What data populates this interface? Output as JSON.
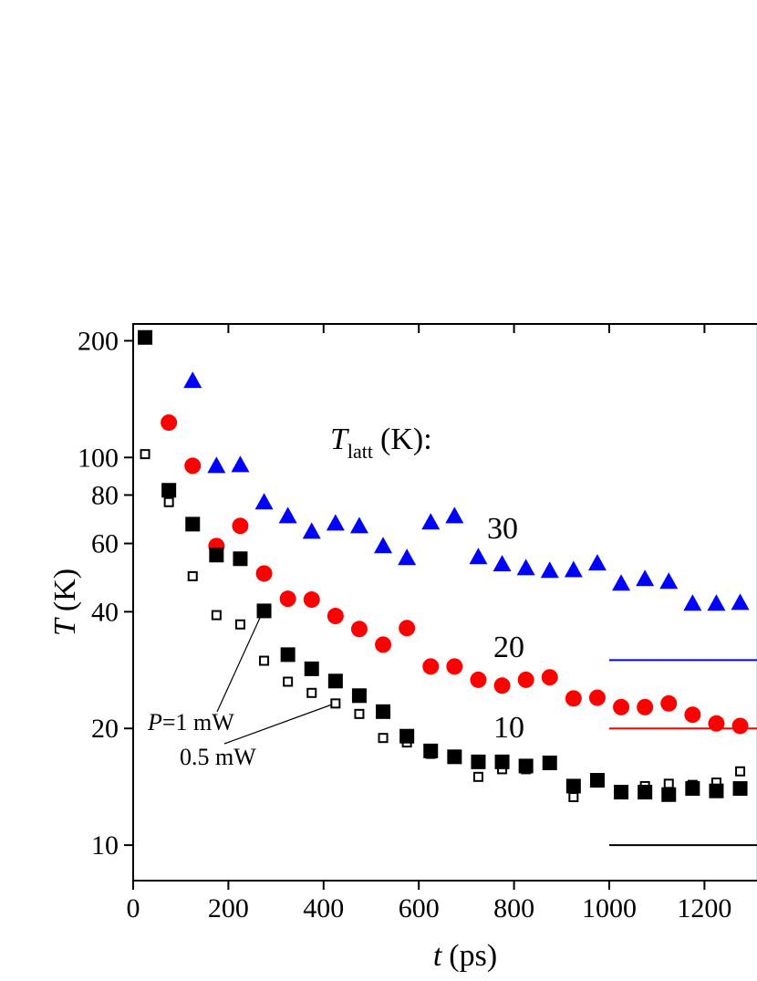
{
  "chart_data": {
    "type": "scatter",
    "x_label": {
      "symbol": "t",
      "unit": "(ps)"
    },
    "y_label": {
      "symbol": "T",
      "unit": "(K)"
    },
    "legend_title": {
      "symbol": "T",
      "subscript": "latt",
      "unit": "(K):"
    },
    "curve_labels": [
      "30",
      "20",
      "10"
    ],
    "power_labels": [
      {
        "symbol": "P",
        "text": "=1 mW"
      },
      {
        "text": "0.5 mW"
      }
    ],
    "xlim": [
      0,
      1312
    ],
    "xticks": [
      0,
      200,
      400,
      600,
      800,
      1000,
      1200
    ],
    "ylim": [
      8.1,
      221
    ],
    "ylog": true,
    "yticks": [
      10,
      20,
      40,
      60,
      80,
      100,
      200
    ],
    "series": [
      {
        "marker": "triangle",
        "color": "#0000ff",
        "x": [
          125,
          175,
          225,
          275,
          325,
          375,
          425,
          475,
          525,
          575,
          625,
          675,
          725,
          775,
          825,
          875,
          925,
          975,
          1025,
          1075,
          1125,
          1175,
          1225,
          1275
        ],
        "values": [
          157,
          94.7,
          95.2,
          76.3,
          70.3,
          64.1,
          67.3,
          66.2,
          58.8,
          54.8,
          67.7,
          70.3,
          55.1,
          52.8,
          51.6,
          50.8,
          51.0,
          53.1,
          47.1,
          48.4,
          47.6,
          41.8,
          41.8,
          42.0
        ]
      },
      {
        "marker": "circle",
        "color": "#ff0000",
        "x": [
          75,
          125,
          175,
          225,
          275,
          325,
          375,
          425,
          475,
          525,
          575,
          625,
          675,
          725,
          775,
          825,
          875,
          925,
          975,
          1025,
          1075,
          1125,
          1175,
          1225,
          1275
        ],
        "values": [
          123,
          95.2,
          59.1,
          66.6,
          50.2,
          43.2,
          43.0,
          39.0,
          36.1,
          32.9,
          36.3,
          28.9,
          28.9,
          26.7,
          25.8,
          26.7,
          27.1,
          23.9,
          24.0,
          22.7,
          22.7,
          23.2,
          21.7,
          20.6,
          20.3
        ]
      },
      {
        "marker": "square",
        "color": "#000000",
        "x": [
          25,
          75,
          125,
          175,
          225,
          275,
          325,
          375,
          425,
          475,
          525,
          575,
          625,
          675,
          725,
          775,
          825,
          875,
          925,
          975,
          1025,
          1075,
          1125,
          1175,
          1225,
          1275
        ],
        "values": [
          204,
          82.3,
          67.3,
          56.0,
          54.8,
          40.2,
          31.0,
          28.5,
          26.5,
          24.3,
          22.1,
          19.1,
          17.5,
          16.9,
          16.4,
          16.4,
          16.0,
          16.3,
          14.2,
          14.7,
          13.7,
          13.7,
          13.5,
          14.0,
          13.8,
          14.0
        ]
      },
      {
        "marker": "open-square",
        "color": "#000000",
        "x": [
          25,
          75,
          125,
          175,
          225,
          275,
          325,
          375,
          425,
          475,
          525,
          575,
          625,
          675,
          725,
          775,
          825,
          875,
          925,
          975,
          1025,
          1075,
          1125,
          1175,
          1225,
          1275
        ],
        "values": [
          102,
          76.7,
          49.4,
          39.2,
          37.1,
          29.9,
          26.4,
          24.7,
          23.2,
          21.8,
          18.9,
          18.4,
          17.2,
          16.8,
          15.0,
          15.7,
          15.7,
          16.3,
          13.3,
          14.5,
          13.8,
          14.2,
          14.4,
          14.3,
          14.5,
          15.5
        ]
      }
    ],
    "reference_lines": {
      "x_start": 1000,
      "values": [
        30,
        20,
        10
      ],
      "colors": [
        "#0000ff",
        "#ff0000",
        "#000000"
      ]
    }
  }
}
